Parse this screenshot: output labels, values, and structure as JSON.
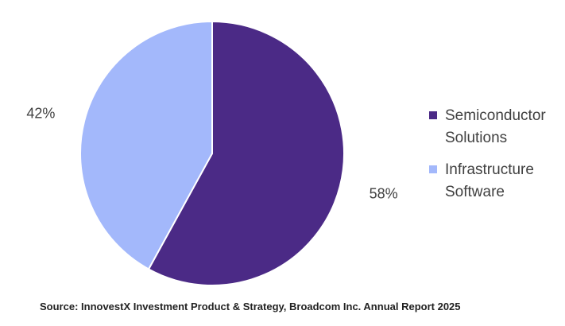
{
  "chart_data": {
    "type": "pie",
    "categories": [
      "Semiconductor Solutions",
      "Infrastructure Software"
    ],
    "values": [
      58,
      42
    ],
    "labels": [
      "58%",
      "42%"
    ],
    "colors": [
      "#4b2a86",
      "#a3b8fb"
    ],
    "legend": [
      "Semiconductor Solutions",
      "Infrastructure Software"
    ],
    "legend_position": "right",
    "start_angle_deg": 0,
    "direction": "clockwise"
  },
  "legend_lines": [
    [
      "Semiconductor",
      "Solutions"
    ],
    [
      "Infrastructure",
      "Software"
    ]
  ],
  "source": "Source: InnovestX Investment Product & Strategy, Broadcom Inc. Annual Report 2025"
}
